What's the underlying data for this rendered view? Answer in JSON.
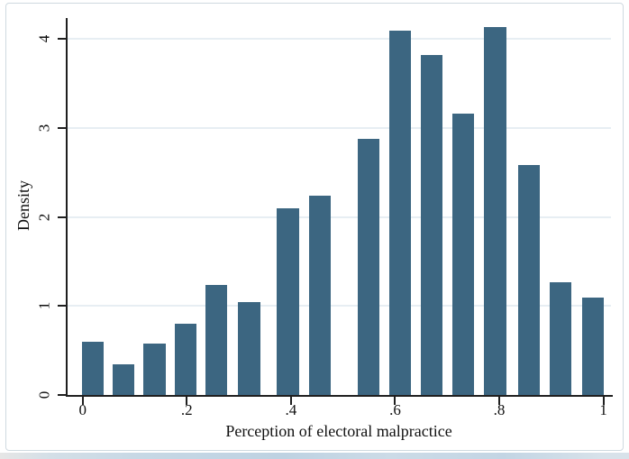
{
  "figure": {
    "y_axis_title": "Density",
    "x_axis_title": "Perception of electoral malpractice"
  },
  "colors": {
    "bar_fill": "#3c6681",
    "gridline": "#e7eef3",
    "axis": "#1f1f1f",
    "text": "#111111",
    "frame_border": "#cfd9e0",
    "bottom_strip": "#c7d8e5"
  },
  "chart_data": {
    "type": "bar",
    "title": "",
    "xlabel": "Perception of electoral malpractice",
    "ylabel": "Density",
    "xlim": [
      -0.029,
      1.017
    ],
    "ylim": [
      0,
      4.23
    ],
    "x_ticks": [
      0,
      0.2,
      0.4,
      0.6,
      0.8,
      1
    ],
    "x_tick_labels": [
      "0",
      ".2",
      ".4",
      ".6",
      ".8",
      "1"
    ],
    "y_ticks": [
      0,
      1,
      2,
      3,
      4
    ],
    "y_tick_labels": [
      "0",
      "1",
      "2",
      "3",
      "4"
    ],
    "grid": "horizontal gridlines at y=1,2,3,4",
    "legend": "none",
    "bar_width_units": 0.042,
    "bars": [
      {
        "x": 0.019,
        "density": 0.6
      },
      {
        "x": 0.079,
        "density": 0.34
      },
      {
        "x": 0.138,
        "density": 0.58
      },
      {
        "x": 0.198,
        "density": 0.8
      },
      {
        "x": 0.257,
        "density": 1.24
      },
      {
        "x": 0.32,
        "density": 1.04
      },
      {
        "x": 0.394,
        "density": 2.1
      },
      {
        "x": 0.455,
        "density": 2.24
      },
      {
        "x": 0.549,
        "density": 2.88
      },
      {
        "x": 0.61,
        "density": 4.09
      },
      {
        "x": 0.67,
        "density": 3.82
      },
      {
        "x": 0.731,
        "density": 3.16
      },
      {
        "x": 0.792,
        "density": 4.13
      },
      {
        "x": 0.857,
        "density": 2.58
      },
      {
        "x": 0.918,
        "density": 1.27
      },
      {
        "x": 0.98,
        "density": 1.09
      }
    ]
  }
}
